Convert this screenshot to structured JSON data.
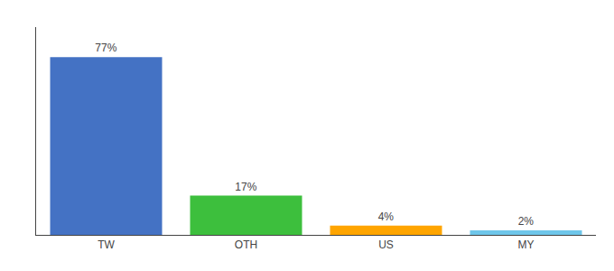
{
  "chart_data": {
    "type": "bar",
    "categories": [
      "TW",
      "OTH",
      "US",
      "MY"
    ],
    "values": [
      77,
      17,
      4,
      2
    ],
    "value_labels": [
      "77%",
      "17%",
      "4%",
      "2%"
    ],
    "data_labels": true,
    "colors": [
      "#4472C4",
      "#3DBF3D",
      "#FFA500",
      "#6EC6EA"
    ],
    "ylim": [
      0,
      90
    ],
    "grid": false,
    "tick_labels": "x"
  }
}
